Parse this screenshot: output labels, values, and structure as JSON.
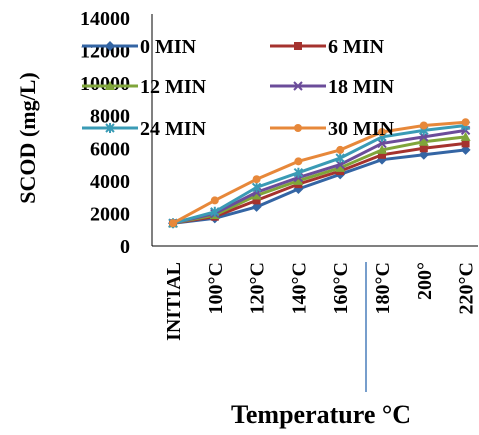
{
  "chart_data": {
    "type": "line",
    "title": "",
    "xlabel": "Temperature °C",
    "ylabel": "SCOD (mg/L)",
    "categories": [
      "INITIAL",
      "100°C",
      "120°C",
      "140°C",
      "160°C",
      "180°C",
      "200°",
      "220°C"
    ],
    "ylim": [
      0,
      14000
    ],
    "yticks": [
      "0",
      "2000",
      "4000",
      "6000",
      "8000",
      "10000",
      "12000",
      "14000"
    ],
    "grid": false,
    "legend_position": "top, overlapping plot area",
    "series": [
      {
        "name": "0 MIN",
        "color": "#3465A4",
        "marker": "diamond",
        "values": [
          1400,
          1700,
          2400,
          3500,
          4400,
          5300,
          5600,
          5900
        ]
      },
      {
        "name": "6 MIN",
        "color": "#A5322E",
        "marker": "square",
        "values": [
          1400,
          1800,
          2800,
          3800,
          4600,
          5600,
          6000,
          6300
        ]
      },
      {
        "name": "12 MIN",
        "color": "#7FA53A",
        "marker": "triangle",
        "values": [
          1400,
          1900,
          3100,
          4000,
          4800,
          5900,
          6400,
          6700
        ]
      },
      {
        "name": "18 MIN",
        "color": "#6B4C9A",
        "marker": "x",
        "values": [
          1400,
          2000,
          3300,
          4200,
          5000,
          6300,
          6700,
          7100
        ]
      },
      {
        "name": "24 MIN",
        "color": "#3A9BB5",
        "marker": "star",
        "values": [
          1400,
          2100,
          3600,
          4500,
          5400,
          6700,
          7100,
          7400
        ]
      },
      {
        "name": "30 MIN",
        "color": "#E7883A",
        "marker": "circle",
        "values": [
          1400,
          2800,
          4100,
          5200,
          5900,
          7000,
          7400,
          7600
        ]
      }
    ]
  }
}
